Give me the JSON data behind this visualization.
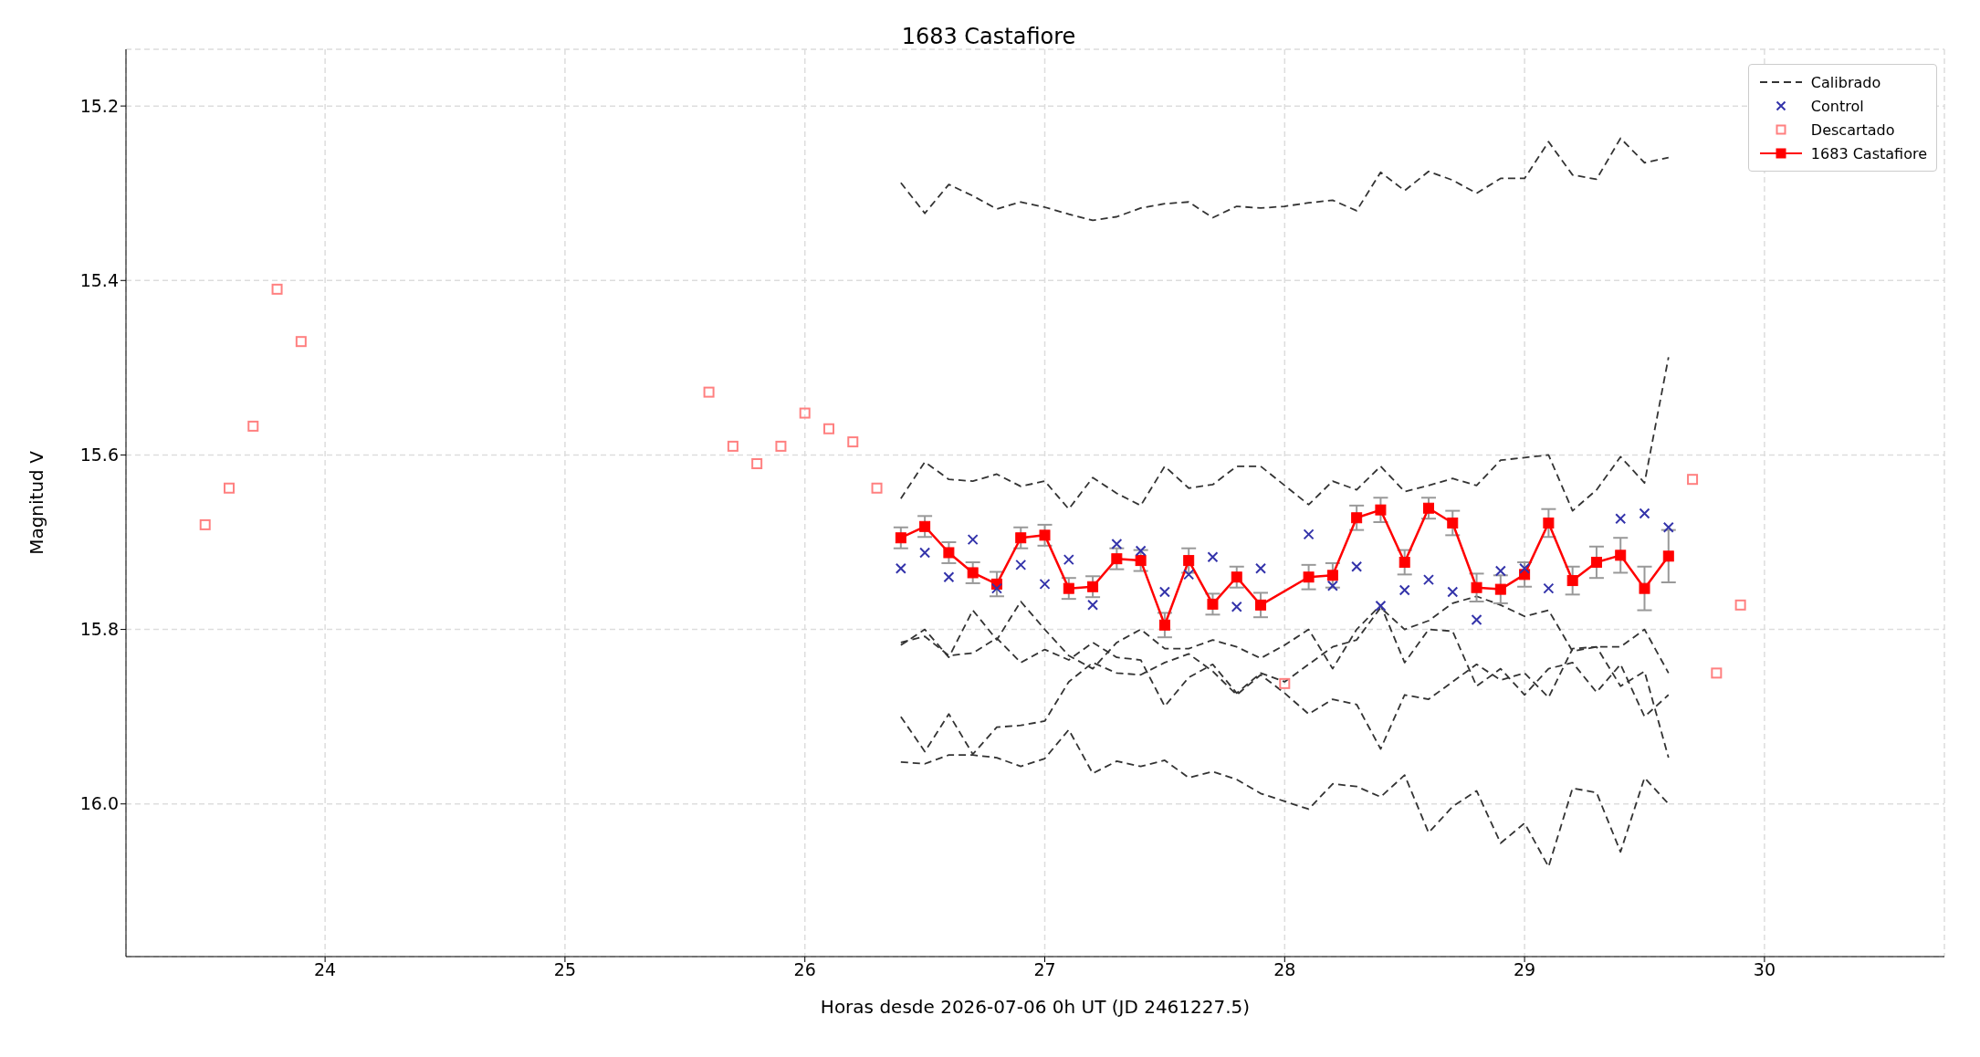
{
  "chart_data": {
    "type": "line",
    "title": "1683 Castafiore",
    "xlabel": "Horas desde 2026-07-06 0h UT (JD 2461227.5)",
    "ylabel": "Magnitud V",
    "x": [
      26.4,
      26.5,
      26.6,
      26.7,
      26.8,
      26.9,
      27.0,
      27.1,
      27.2,
      27.3,
      27.4,
      27.5,
      27.6,
      27.7,
      27.8,
      27.9,
      28.0,
      28.1,
      28.2,
      28.3,
      28.4,
      28.5,
      28.6,
      28.7,
      28.8,
      28.9,
      29.0,
      29.1,
      29.2,
      29.3,
      29.4,
      29.5,
      29.6
    ],
    "xlim": [
      23.17,
      30.75
    ],
    "xticks": [
      24,
      25,
      26,
      27,
      28,
      29,
      30
    ],
    "ylim": [
      16.175,
      15.135
    ],
    "yticks": [
      {
        "value": 15.2,
        "label": "15.2"
      },
      {
        "value": 15.4,
        "label": "15.4"
      },
      {
        "value": 15.6,
        "label": "15.6"
      },
      {
        "value": 15.8,
        "label": "15.8"
      },
      {
        "value": 16.0,
        "label": "16.0"
      }
    ],
    "grid": true,
    "legend": "top right",
    "series": [
      {
        "name": "Calibrado",
        "color": "#333333",
        "line_style": "dashed",
        "marker": "none",
        "values": [
          15.288,
          15.323,
          15.29,
          15.303,
          15.318,
          15.31,
          15.316,
          15.324,
          15.331,
          15.327,
          15.317,
          15.312,
          15.31,
          15.328,
          15.315,
          15.317,
          15.315,
          15.311,
          15.308,
          15.32,
          15.276,
          15.297,
          15.275,
          15.285,
          15.3,
          15.283,
          15.283,
          15.241,
          15.279,
          15.284,
          15.237,
          15.265,
          15.259
        ]
      },
      {
        "type": "line",
        "color": "#333333",
        "line_style": "dashed",
        "marker": "none",
        "values": [
          15.65,
          15.608,
          15.628,
          15.63,
          15.622,
          15.636,
          15.63,
          15.662,
          15.626,
          15.644,
          15.658,
          15.613,
          15.638,
          15.634,
          15.613,
          15.613,
          15.635,
          15.657,
          15.63,
          15.64,
          15.613,
          15.642,
          15.635,
          15.627,
          15.635,
          15.606,
          15.603,
          15.6,
          15.664,
          15.64,
          15.602,
          15.632,
          15.488
        ]
      },
      {
        "type": "line",
        "color": "#333333",
        "line_style": "dashed",
        "marker": "none",
        "values": [
          15.818,
          15.8,
          15.832,
          15.778,
          15.812,
          15.768,
          15.8,
          15.83,
          15.845,
          15.815,
          15.8,
          15.822,
          15.822,
          15.812,
          15.82,
          15.833,
          15.818,
          15.8,
          15.845,
          15.8,
          15.772,
          15.838,
          15.8,
          15.802,
          15.865,
          15.845,
          15.875,
          15.845,
          15.838,
          15.872,
          15.84,
          15.9,
          15.875
        ]
      },
      {
        "type": "line",
        "color": "#333333",
        "line_style": "dashed",
        "marker": "none",
        "values": [
          15.815,
          15.808,
          15.83,
          15.827,
          15.81,
          15.838,
          15.823,
          15.835,
          15.815,
          15.832,
          15.835,
          15.888,
          15.855,
          15.84,
          15.873,
          15.85,
          15.86,
          15.84,
          15.82,
          15.812,
          15.775,
          15.8,
          15.79,
          15.77,
          15.762,
          15.772,
          15.785,
          15.778,
          15.825,
          15.82,
          15.82,
          15.8,
          15.85
        ]
      },
      {
        "type": "line",
        "color": "#333333",
        "line_style": "dashed",
        "marker": "none",
        "values": [
          15.9,
          15.94,
          15.897,
          15.943,
          15.912,
          15.91,
          15.905,
          15.86,
          15.838,
          15.85,
          15.852,
          15.838,
          15.828,
          15.848,
          15.875,
          15.852,
          15.873,
          15.897,
          15.88,
          15.886,
          15.937,
          15.875,
          15.88,
          15.86,
          15.84,
          15.858,
          15.85,
          15.878,
          15.822,
          15.82,
          15.865,
          15.848,
          15.947
        ]
      },
      {
        "type": "line",
        "color": "#333333",
        "line_style": "dashed",
        "marker": "none",
        "values": [
          15.952,
          15.954,
          15.944,
          15.944,
          15.947,
          15.957,
          15.948,
          15.915,
          15.965,
          15.951,
          15.957,
          15.95,
          15.97,
          15.963,
          15.972,
          15.988,
          15.997,
          16.006,
          15.977,
          15.98,
          15.992,
          15.967,
          16.033,
          16.003,
          15.985,
          16.045,
          16.022,
          16.072,
          15.982,
          15.987,
          16.055,
          15.97,
          16.0
        ]
      },
      {
        "name": "Control",
        "type": "scatter",
        "color": "#3333aa",
        "marker": "cross",
        "x": [
          26.4,
          26.5,
          26.6,
          26.7,
          26.8,
          26.9,
          27.0,
          27.1,
          27.2,
          27.3,
          27.4,
          27.5,
          27.6,
          27.7,
          27.8,
          27.9,
          28.1,
          28.2,
          28.3,
          28.4,
          28.5,
          28.6,
          28.7,
          28.8,
          28.9,
          29.0,
          29.1,
          29.4,
          29.5,
          29.6
        ],
        "values": [
          15.73,
          15.712,
          15.74,
          15.697,
          15.753,
          15.726,
          15.748,
          15.72,
          15.772,
          15.702,
          15.71,
          15.757,
          15.737,
          15.717,
          15.774,
          15.73,
          15.691,
          15.75,
          15.728,
          15.773,
          15.755,
          15.743,
          15.757,
          15.789,
          15.733,
          15.73,
          15.753,
          15.673,
          15.667,
          15.683
        ]
      },
      {
        "name": "Descartado",
        "type": "scatter",
        "color": "#ff8080",
        "marker": "square",
        "x": [
          23.5,
          23.6,
          23.7,
          23.8,
          23.9,
          25.6,
          25.7,
          25.8,
          25.9,
          26.0,
          26.1,
          26.2,
          26.3,
          28.0,
          29.7,
          29.8,
          29.9
        ],
        "values": [
          15.68,
          15.638,
          15.567,
          15.41,
          15.47,
          15.528,
          15.59,
          15.61,
          15.59,
          15.552,
          15.57,
          15.585,
          15.638,
          15.862,
          15.628,
          15.85,
          15.772
        ]
      },
      {
        "name": "1683 Castafiore",
        "color": "#ff0000",
        "line_style": "solid",
        "marker": "square",
        "x": [
          26.4,
          26.5,
          26.6,
          26.7,
          26.8,
          26.9,
          27.0,
          27.1,
          27.2,
          27.3,
          27.4,
          27.5,
          27.6,
          27.7,
          27.8,
          27.9,
          28.1,
          28.2,
          28.3,
          28.4,
          28.5,
          28.6,
          28.7,
          28.8,
          28.9,
          29.0,
          29.1,
          29.2,
          29.3,
          29.4,
          29.5,
          29.6
        ],
        "values": [
          15.695,
          15.682,
          15.712,
          15.735,
          15.748,
          15.695,
          15.692,
          15.753,
          15.751,
          15.719,
          15.721,
          15.795,
          15.721,
          15.771,
          15.74,
          15.772,
          15.74,
          15.738,
          15.672,
          15.663,
          15.723,
          15.661,
          15.678,
          15.752,
          15.754,
          15.737,
          15.678,
          15.744,
          15.723,
          15.715,
          15.753,
          15.716
        ],
        "errors": [
          0.012,
          0.012,
          0.012,
          0.012,
          0.014,
          0.012,
          0.012,
          0.012,
          0.012,
          0.012,
          0.012,
          0.014,
          0.014,
          0.012,
          0.012,
          0.014,
          0.014,
          0.014,
          0.014,
          0.014,
          0.014,
          0.012,
          0.014,
          0.016,
          0.016,
          0.014,
          0.016,
          0.016,
          0.018,
          0.02,
          0.025,
          0.03
        ]
      }
    ]
  }
}
